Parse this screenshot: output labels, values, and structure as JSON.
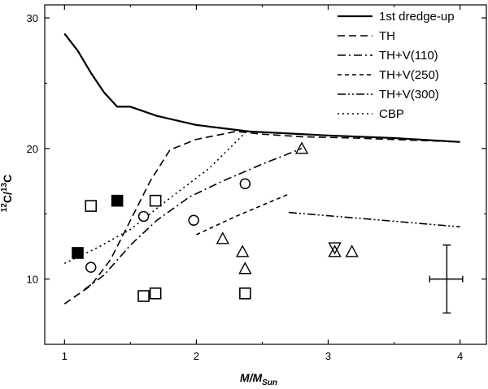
{
  "chart_data": {
    "type": "line",
    "title": "",
    "xlabel": {
      "main": "M/M",
      "sub": "Sun"
    },
    "ylabel": {
      "sup1": "12",
      "mid": "C/",
      "sup2": "13",
      "end": "C"
    },
    "xlim": [
      0.85,
      4.2
    ],
    "ylim": [
      5,
      31
    ],
    "xticks": [
      1,
      2,
      3,
      4
    ],
    "xtick_labels": [
      "1",
      "2",
      "3",
      "4"
    ],
    "yticks": [
      10,
      20,
      30
    ],
    "ytick_labels": [
      "10",
      "20",
      "30"
    ],
    "legend_position": "top-right",
    "series": [
      {
        "name": "1st dredge-up",
        "style": "solid",
        "x": [
          1.0,
          1.1,
          1.2,
          1.3,
          1.4,
          1.5,
          1.7,
          2.0,
          2.4,
          3.0,
          3.5,
          4.0
        ],
        "y": [
          28.8,
          27.5,
          25.8,
          24.3,
          23.2,
          23.2,
          22.5,
          21.8,
          21.3,
          21.0,
          20.8,
          20.5
        ]
      },
      {
        "name": "TH",
        "style": "dash",
        "x": [
          1.0,
          1.2,
          1.35,
          1.5,
          1.65,
          1.8,
          2.0,
          2.3,
          2.5,
          2.8,
          3.2,
          4.0
        ],
        "y": [
          8.1,
          9.5,
          11.5,
          14.5,
          17.5,
          19.9,
          20.7,
          21.3,
          21.1,
          20.9,
          20.8,
          20.5
        ]
      },
      {
        "name": "TH+V(110)",
        "style": "dashdot",
        "x": [
          1.15,
          1.3,
          1.5,
          1.7,
          1.95,
          2.2,
          2.5,
          2.8
        ],
        "y": [
          9.2,
          10.3,
          12.6,
          14.5,
          16.3,
          17.5,
          18.8,
          20.0
        ]
      },
      {
        "name": "TH+V(250)",
        "style": "shortdash",
        "x": [
          2.0,
          2.3,
          2.7
        ],
        "y": [
          13.4,
          14.8,
          16.5
        ]
      },
      {
        "name": "TH+V(300)",
        "style": "dashdotdot",
        "x": [
          2.7,
          3.3,
          4.0
        ],
        "y": [
          15.1,
          14.6,
          14.0
        ]
      },
      {
        "name": "CBP",
        "style": "dot",
        "x": [
          1.0,
          1.25,
          1.5,
          1.8,
          2.1,
          2.38
        ],
        "y": [
          11.2,
          12.4,
          13.8,
          16.2,
          18.5,
          21.3
        ]
      }
    ],
    "markers": [
      {
        "shape": "square-open",
        "x": 1.2,
        "y": 15.6
      },
      {
        "shape": "square-open",
        "x": 1.69,
        "y": 16.0
      },
      {
        "shape": "square-open",
        "x": 1.6,
        "y": 8.7
      },
      {
        "shape": "square-open",
        "x": 1.69,
        "y": 8.9
      },
      {
        "shape": "square-open",
        "x": 2.37,
        "y": 8.9
      },
      {
        "shape": "square-filled",
        "x": 1.1,
        "y": 12.0
      },
      {
        "shape": "square-filled",
        "x": 1.4,
        "y": 16.0
      },
      {
        "shape": "circle-open",
        "x": 1.2,
        "y": 10.9
      },
      {
        "shape": "circle-open",
        "x": 1.6,
        "y": 14.8
      },
      {
        "shape": "circle-open",
        "x": 1.98,
        "y": 14.5
      },
      {
        "shape": "circle-open",
        "x": 2.37,
        "y": 17.3
      },
      {
        "shape": "triangle-open",
        "x": 2.8,
        "y": 20.0
      },
      {
        "shape": "triangle-open",
        "x": 2.2,
        "y": 13.1
      },
      {
        "shape": "triangle-open",
        "x": 2.35,
        "y": 12.1
      },
      {
        "shape": "triangle-open",
        "x": 2.37,
        "y": 10.8
      },
      {
        "shape": "triangle-open",
        "x": 3.05,
        "y": 12.1
      },
      {
        "shape": "triangle-open",
        "x": 3.18,
        "y": 12.1
      },
      {
        "shape": "triangle-down-open",
        "x": 3.05,
        "y": 12.4
      }
    ],
    "error_bar": {
      "x": 3.9,
      "y": 10.0,
      "x_low": 3.77,
      "x_high": 4.02,
      "y_low": 7.4,
      "y_high": 12.6
    }
  }
}
